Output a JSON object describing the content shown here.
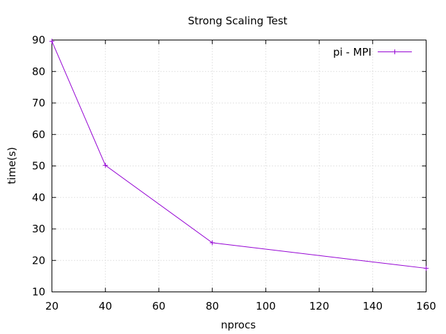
{
  "chart_data": {
    "type": "line",
    "title": "Strong Scaling Test",
    "xlabel": "nprocs",
    "ylabel": "time(s)",
    "xlim": [
      20,
      160
    ],
    "ylim": [
      10,
      90
    ],
    "xticks": [
      20,
      40,
      60,
      80,
      100,
      120,
      140,
      160
    ],
    "yticks": [
      10,
      20,
      30,
      40,
      50,
      60,
      70,
      80,
      90
    ],
    "grid": true,
    "legend_position": "top-right",
    "series": [
      {
        "name": "pi - MPI",
        "color": "#9400d3",
        "marker": "plus",
        "x": [
          20,
          40,
          80,
          160
        ],
        "y": [
          89.6,
          50.2,
          25.6,
          17.5
        ]
      }
    ]
  }
}
